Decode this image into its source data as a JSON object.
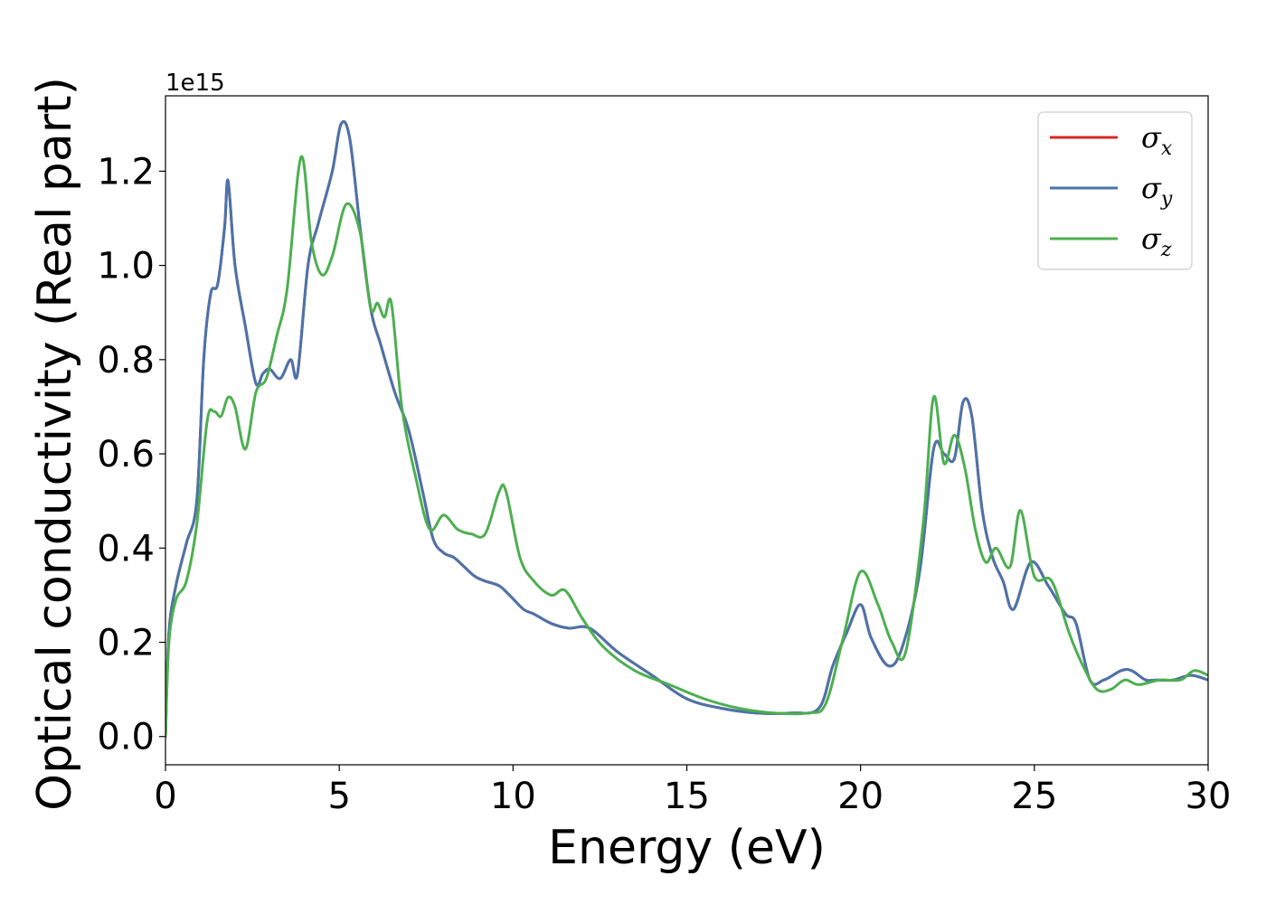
{
  "chart_data": {
    "type": "line",
    "xlabel": "Energy (eV)",
    "ylabel": "Optical conductivity (Real part)",
    "y_offset_label": "1e15",
    "xlim": [
      0,
      30
    ],
    "ylim": [
      -0.06,
      1.36
    ],
    "x_ticks": [
      0,
      5,
      10,
      15,
      20,
      25,
      30
    ],
    "x_tick_labels": [
      "0",
      "5",
      "10",
      "15",
      "20",
      "25",
      "30"
    ],
    "y_ticks": [
      0.0,
      0.2,
      0.4,
      0.6,
      0.8,
      1.0,
      1.2
    ],
    "y_tick_labels": [
      "0.0",
      "0.2",
      "0.4",
      "0.6",
      "0.8",
      "1.0",
      "1.2"
    ],
    "grid": false,
    "legend_position": "top-right",
    "colors": {
      "sigma_x": "#d62728",
      "sigma_y": "#4a74aa",
      "sigma_z": "#4caf50"
    },
    "series": [
      {
        "name": "σx",
        "legend_base": "σ",
        "legend_sub": "x",
        "color": "#d62728",
        "x": [
          0,
          0.1,
          0.3,
          0.6,
          0.9,
          1.1,
          1.3,
          1.5,
          1.7,
          1.8,
          2.0,
          2.3,
          2.6,
          2.8,
          3.0,
          3.3,
          3.6,
          3.8,
          4.1,
          4.4,
          4.8,
          5.05,
          5.3,
          5.6,
          5.9,
          6.2,
          6.6,
          7.0,
          7.4,
          7.7,
          8.0,
          8.3,
          8.6,
          8.9,
          9.2,
          9.6,
          9.9,
          10.3,
          10.6,
          11.1,
          11.6,
          12.2,
          13.0,
          14.0,
          15.0,
          16.0,
          17.0,
          18.0,
          18.8,
          19.2,
          19.6,
          20.0,
          20.3,
          20.8,
          21.2,
          21.7,
          22.1,
          22.4,
          22.7,
          22.95,
          23.2,
          23.5,
          23.8,
          24.1,
          24.4,
          24.9,
          25.4,
          25.9,
          26.2,
          26.6,
          27.0,
          27.5,
          27.8,
          28.2,
          28.5,
          29.0,
          29.5,
          30.0
        ],
        "y": [
          0.0,
          0.22,
          0.32,
          0.41,
          0.5,
          0.8,
          0.94,
          0.96,
          1.08,
          1.18,
          1.0,
          0.87,
          0.75,
          0.77,
          0.78,
          0.76,
          0.8,
          0.77,
          1.0,
          1.09,
          1.2,
          1.3,
          1.27,
          1.08,
          0.91,
          0.83,
          0.73,
          0.65,
          0.52,
          0.42,
          0.39,
          0.38,
          0.36,
          0.34,
          0.33,
          0.32,
          0.3,
          0.27,
          0.26,
          0.24,
          0.23,
          0.23,
          0.18,
          0.13,
          0.08,
          0.06,
          0.05,
          0.05,
          0.06,
          0.15,
          0.22,
          0.28,
          0.21,
          0.15,
          0.19,
          0.35,
          0.61,
          0.6,
          0.59,
          0.71,
          0.68,
          0.48,
          0.38,
          0.33,
          0.27,
          0.37,
          0.32,
          0.26,
          0.24,
          0.12,
          0.12,
          0.14,
          0.14,
          0.12,
          0.12,
          0.12,
          0.13,
          0.12
        ]
      },
      {
        "name": "σy",
        "legend_base": "σ",
        "legend_sub": "y",
        "color": "#4a74aa",
        "x": [
          0,
          0.1,
          0.3,
          0.6,
          0.9,
          1.1,
          1.3,
          1.5,
          1.7,
          1.8,
          2.0,
          2.3,
          2.6,
          2.8,
          3.0,
          3.3,
          3.6,
          3.8,
          4.1,
          4.4,
          4.8,
          5.05,
          5.3,
          5.6,
          5.9,
          6.2,
          6.6,
          7.0,
          7.4,
          7.7,
          8.0,
          8.3,
          8.6,
          8.9,
          9.2,
          9.6,
          9.9,
          10.3,
          10.6,
          11.1,
          11.6,
          12.2,
          13.0,
          14.0,
          15.0,
          16.0,
          17.0,
          18.0,
          18.8,
          19.2,
          19.6,
          20.0,
          20.3,
          20.8,
          21.2,
          21.7,
          22.1,
          22.4,
          22.7,
          22.95,
          23.2,
          23.5,
          23.8,
          24.1,
          24.4,
          24.9,
          25.4,
          25.9,
          26.2,
          26.6,
          27.0,
          27.5,
          27.8,
          28.2,
          28.5,
          29.0,
          29.5,
          30.0
        ],
        "y": [
          0.0,
          0.22,
          0.32,
          0.41,
          0.5,
          0.8,
          0.94,
          0.96,
          1.08,
          1.18,
          1.0,
          0.87,
          0.75,
          0.77,
          0.78,
          0.76,
          0.8,
          0.77,
          1.0,
          1.09,
          1.2,
          1.3,
          1.27,
          1.08,
          0.91,
          0.83,
          0.73,
          0.65,
          0.52,
          0.42,
          0.39,
          0.38,
          0.36,
          0.34,
          0.33,
          0.32,
          0.3,
          0.27,
          0.26,
          0.24,
          0.23,
          0.23,
          0.18,
          0.13,
          0.08,
          0.06,
          0.05,
          0.05,
          0.06,
          0.15,
          0.22,
          0.28,
          0.21,
          0.15,
          0.19,
          0.35,
          0.61,
          0.6,
          0.59,
          0.71,
          0.68,
          0.48,
          0.38,
          0.33,
          0.27,
          0.37,
          0.32,
          0.26,
          0.24,
          0.12,
          0.12,
          0.14,
          0.14,
          0.12,
          0.12,
          0.12,
          0.13,
          0.12
        ]
      },
      {
        "name": "σz",
        "legend_base": "σ",
        "legend_sub": "z",
        "color": "#4caf50",
        "x": [
          0,
          0.1,
          0.3,
          0.6,
          0.9,
          1.2,
          1.4,
          1.6,
          1.8,
          2.0,
          2.3,
          2.6,
          2.9,
          3.2,
          3.5,
          3.9,
          4.2,
          4.5,
          4.8,
          5.2,
          5.6,
          5.9,
          6.1,
          6.3,
          6.5,
          6.8,
          7.2,
          7.6,
          8.0,
          8.4,
          8.8,
          9.2,
          9.6,
          9.8,
          10.2,
          10.6,
          11.1,
          11.5,
          12.0,
          12.6,
          13.5,
          14.5,
          15.5,
          16.5,
          17.5,
          18.5,
          19.0,
          19.5,
          20.0,
          20.5,
          20.9,
          21.3,
          21.8,
          22.1,
          22.4,
          22.7,
          23.0,
          23.3,
          23.6,
          23.9,
          24.3,
          24.6,
          25.0,
          25.5,
          26.0,
          26.4,
          26.8,
          27.2,
          27.6,
          28.0,
          28.6,
          29.2,
          29.6,
          30.0
        ],
        "y": [
          0.0,
          0.2,
          0.29,
          0.33,
          0.45,
          0.67,
          0.69,
          0.68,
          0.72,
          0.7,
          0.61,
          0.73,
          0.76,
          0.85,
          0.95,
          1.23,
          1.05,
          0.98,
          1.02,
          1.13,
          1.07,
          0.91,
          0.92,
          0.89,
          0.92,
          0.7,
          0.55,
          0.44,
          0.47,
          0.44,
          0.43,
          0.43,
          0.52,
          0.52,
          0.38,
          0.33,
          0.3,
          0.31,
          0.25,
          0.19,
          0.14,
          0.11,
          0.08,
          0.06,
          0.05,
          0.05,
          0.07,
          0.21,
          0.35,
          0.28,
          0.2,
          0.18,
          0.45,
          0.72,
          0.58,
          0.64,
          0.57,
          0.44,
          0.37,
          0.4,
          0.36,
          0.48,
          0.34,
          0.33,
          0.22,
          0.15,
          0.1,
          0.1,
          0.12,
          0.11,
          0.12,
          0.12,
          0.14,
          0.13
        ]
      }
    ]
  }
}
